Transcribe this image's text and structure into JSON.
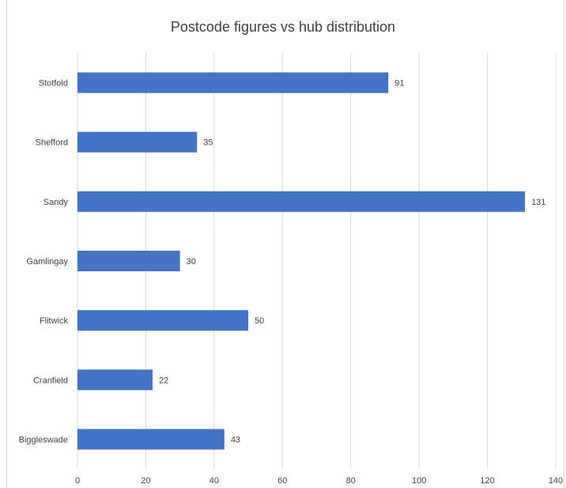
{
  "chart_data": {
    "type": "bar",
    "orientation": "horizontal",
    "title": "Postcode figures vs hub distribution",
    "xlabel": "",
    "ylabel": "",
    "categories": [
      "Stotfold",
      "Shefford",
      "Sandy",
      "Gamlingay",
      "Flitwick",
      "Cranfield",
      "Biggleswade"
    ],
    "values": [
      91,
      35,
      131,
      30,
      50,
      22,
      43
    ],
    "xlim": [
      0,
      140
    ],
    "x_ticks": [
      0,
      20,
      40,
      60,
      80,
      100,
      120,
      140
    ],
    "grid": "vertical",
    "data_labels": true,
    "bar_color": "#4472C4",
    "grid_color": "#d9d9d9"
  }
}
